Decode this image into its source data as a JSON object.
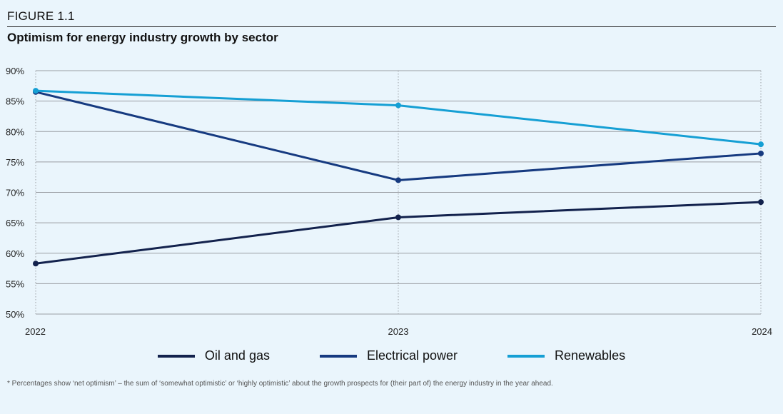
{
  "header": {
    "figure_label": "FIGURE 1.1",
    "title": "Optimism for energy industry growth by sector"
  },
  "footnote": "* Percentages show ‘net optimism’ – the sum of ‘somewhat optimistic’ or ‘highly optimistic’ about the growth prospects for (their part of) the energy industry in the year ahead.",
  "chart_data": {
    "type": "line",
    "title": "Optimism for energy industry growth by sector",
    "xlabel": "",
    "ylabel": "",
    "categories": [
      "2022",
      "2023",
      "2024"
    ],
    "ylim": [
      50,
      90
    ],
    "yticks": [
      50,
      55,
      60,
      65,
      70,
      75,
      80,
      85,
      90
    ],
    "ytick_labels": [
      "50%",
      "55%",
      "60%",
      "65%",
      "70%",
      "75%",
      "80%",
      "85%",
      "90%"
    ],
    "grid": "horizontal",
    "legend_position": "bottom",
    "series": [
      {
        "name": "Oil and gas",
        "color": "#13224d",
        "values": [
          58.3,
          65.9,
          68.4
        ]
      },
      {
        "name": "Electrical power",
        "color": "#163a80",
        "values": [
          86.5,
          72.0,
          76.4
        ]
      },
      {
        "name": "Renewables",
        "color": "#159fd4",
        "values": [
          86.7,
          84.3,
          77.9
        ]
      }
    ]
  }
}
